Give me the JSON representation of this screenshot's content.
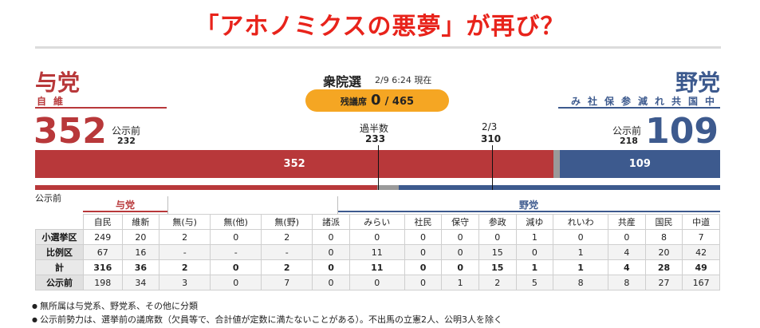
{
  "headline": "「アホノミクスの悪夢」が再び？",
  "ruling": {
    "title": "与党",
    "parties": "自維",
    "seats": "352",
    "pre_label": "公示前",
    "pre_value": "232",
    "color": "#b8383a"
  },
  "opposition": {
    "title": "野党",
    "parties": "み社保参減れ共国中",
    "seats": "109",
    "pre_label": "公示前",
    "pre_value": "218",
    "color": "#3d5a8e"
  },
  "election": {
    "title": "衆院選",
    "timestamp": "2/9 6:24 現在",
    "remaining_label": "残議席",
    "remaining_value": "0",
    "remaining_total": "/ 465"
  },
  "thresholds": {
    "majority_label": "過半数",
    "majority_value": "233",
    "twothirds_label": "2/3",
    "twothirds_value": "310"
  },
  "bar": {
    "total": 465,
    "ruling_seats": 352,
    "other_seats": 4,
    "opposition_seats": 109,
    "ruling_label": "352",
    "opposition_label": "109",
    "pre_ruling": 232,
    "pre_other": 15,
    "pre_opposition": 218,
    "other_color": "#9a9a9a"
  },
  "table": {
    "pre_small_label": "公示前",
    "group_ruling": "与党",
    "group_opposition": "野党",
    "columns": [
      "自民",
      "維新",
      "無(与)",
      "無(他)",
      "無(野)",
      "諸派",
      "みらい",
      "社民",
      "保守",
      "参政",
      "減ゆ",
      "れいわ",
      "共産",
      "国民",
      "中道"
    ],
    "rows": [
      {
        "label": "小選挙区",
        "values": [
          "249",
          "20",
          "2",
          "0",
          "2",
          "0",
          "0",
          "0",
          "0",
          "0",
          "1",
          "0",
          "0",
          "8",
          "7"
        ]
      },
      {
        "label": "比例区",
        "values": [
          "67",
          "16",
          "-",
          "-",
          "-",
          "0",
          "11",
          "0",
          "0",
          "15",
          "0",
          "1",
          "4",
          "20",
          "42"
        ]
      },
      {
        "label": "計",
        "values": [
          "316",
          "36",
          "2",
          "0",
          "2",
          "0",
          "11",
          "0",
          "0",
          "15",
          "1",
          "1",
          "4",
          "28",
          "49"
        ]
      },
      {
        "label": "公示前",
        "values": [
          "198",
          "34",
          "3",
          "0",
          "7",
          "0",
          "0",
          "0",
          "1",
          "2",
          "5",
          "8",
          "8",
          "27",
          "167"
        ]
      }
    ]
  },
  "notes": [
    "無所属は与党系、野党系、その他に分類",
    "公示前勢力は、選挙前の議席数（欠員等で、合計値が定数に満たないことがある）。不出馬の立憲2人、公明3人を除く"
  ],
  "colors": {
    "headline": "#e8231b",
    "pill": "#f5a623"
  }
}
